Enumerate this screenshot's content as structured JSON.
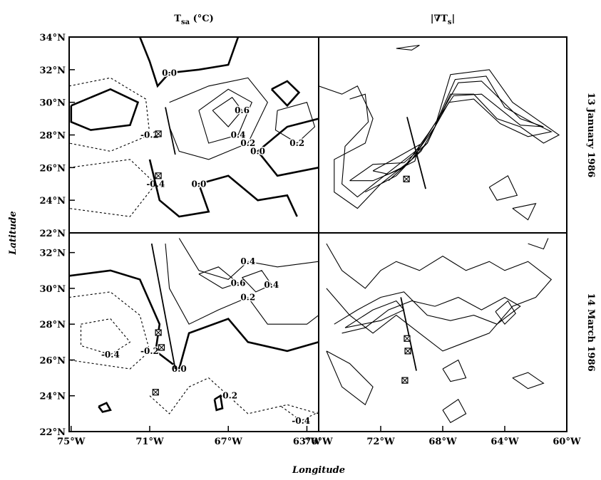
{
  "chart_data": [
    {
      "type": "contour",
      "title": {
        "main": "T",
        "sub": "sa",
        "rest": " (°C)"
      },
      "ylabel": "Latitude",
      "xlim": [
        -75.1,
        -62.4
      ],
      "ylim": [
        22,
        34
      ],
      "yticks": [
        {
          "value": 34,
          "label": "34°N"
        },
        {
          "value": 32,
          "label": "32°N"
        },
        {
          "value": 30,
          "label": "30°N"
        },
        {
          "value": 28,
          "label": "28°N"
        },
        {
          "value": 26,
          "label": "26°N"
        },
        {
          "value": 24,
          "label": "24°N"
        },
        {
          "value": 22,
          "label": "22°N"
        }
      ],
      "contours": [
        {
          "level": 0,
          "label": "0.0",
          "x": [
            -71.5,
            -71,
            -70.6,
            -70,
            -68.5,
            -67,
            -66.5
          ],
          "y": [
            34,
            32.5,
            31,
            31.8,
            32,
            32.3,
            34
          ]
        },
        {
          "level": 0,
          "x": [
            -75,
            -73,
            -71.6,
            -72,
            -74,
            -75,
            -75
          ],
          "y": [
            29.8,
            30.8,
            30,
            28.6,
            28.3,
            28.8,
            29.8
          ]
        },
        {
          "level": -0.2,
          "label": "-0.2",
          "x": [
            -75.1,
            -73,
            -71.2,
            -71,
            -73,
            -75.1
          ],
          "y": [
            31,
            31.5,
            30.2,
            28,
            27,
            27.5
          ]
        },
        {
          "level": -0.4,
          "label": "-0.4",
          "x": [
            -75.1,
            -72,
            -70.7,
            -72,
            -75.1
          ],
          "y": [
            26,
            26.5,
            25,
            23,
            23.5
          ]
        },
        {
          "level": 0.2,
          "label": "0.2",
          "x": [
            -70,
            -68,
            -66,
            -65,
            -66,
            -68,
            -69.5,
            -70
          ],
          "y": [
            30,
            31,
            31.5,
            30,
            27.5,
            26.5,
            27,
            28.5
          ]
        },
        {
          "level": 0.4,
          "label": "0.4",
          "x": [
            -68.5,
            -67,
            -65.8,
            -66.5,
            -68,
            -68.5
          ],
          "y": [
            29.5,
            30.8,
            30,
            28,
            27.5,
            29.5
          ]
        },
        {
          "level": 0.6,
          "label": "0.6",
          "x": [
            -67.8,
            -66.8,
            -66.3,
            -67,
            -67.8
          ],
          "y": [
            29.5,
            30.3,
            29.5,
            28.5,
            29.5
          ]
        },
        {
          "level": 0,
          "label": "0.0",
          "x": [
            -71,
            -70.5,
            -69.5,
            -68,
            -68.5,
            -67,
            -65.5,
            -64,
            -63.5
          ],
          "y": [
            26.5,
            24,
            23,
            23.3,
            25,
            25.5,
            24,
            24.3,
            23
          ]
        },
        {
          "level": 0,
          "label": "0.0",
          "x": [
            -62.4,
            -64.5,
            -65.5,
            -64,
            -62.4
          ],
          "y": [
            26,
            25.5,
            27,
            28.5,
            29
          ]
        },
        {
          "level": 0.2,
          "label": "0.2",
          "x": [
            -64.5,
            -63,
            -62.6,
            -63.5,
            -64.6,
            -64.5
          ],
          "y": [
            29.5,
            30,
            28.5,
            27.5,
            28.3,
            29.5
          ]
        },
        {
          "level": 0,
          "x": [
            -64.8,
            -64,
            -63.4,
            -64,
            -64.8
          ],
          "y": [
            30.8,
            31.3,
            30.6,
            29.8,
            30.8
          ]
        }
      ],
      "markers": {
        "x": [
          -70.56,
          -70.56
        ],
        "y": [
          28.07,
          25.5
        ]
      },
      "section": {
        "x": [
          -70.2,
          -69.7
        ],
        "y": [
          29.7,
          26.8
        ]
      }
    },
    {
      "type": "contour",
      "title": {
        "main": "|∇T",
        "sub": "s",
        "rest": "|"
      },
      "side_label": "13 January 1986",
      "xlim": [
        -76,
        -60
      ],
      "ylim": [
        22,
        34
      ],
      "contours": [
        {
          "level": 1,
          "x": [
            -76,
            -74.5,
            -73.5,
            -72.5,
            -73,
            -75,
            -75,
            -73.5,
            -72,
            -70,
            -68.5,
            -67.5,
            -65,
            -63.5,
            -62,
            -60.5,
            -61.5,
            -63,
            -64.5,
            -66,
            -67.5,
            -69,
            -71,
            -73
          ],
          "y": [
            31,
            30.5,
            31,
            29,
            27.5,
            26.5,
            24.5,
            23.5,
            25,
            26.5,
            28.5,
            31.7,
            32,
            30,
            29,
            28,
            27.5,
            28.5,
            29,
            30.5,
            30.5,
            27.5,
            25.5,
            24.5
          ]
        },
        {
          "level": 2,
          "x": [
            -74,
            -73,
            -72.8,
            -74.3,
            -74.5,
            -73.5,
            -71.5,
            -69.5,
            -68.3,
            -67.2,
            -65.2,
            -64,
            -62.3,
            -61,
            -62.5,
            -64.3,
            -66,
            -67.6,
            -69.4,
            -71.5
          ],
          "y": [
            30.2,
            30.5,
            28.8,
            27.3,
            25,
            24.2,
            25.7,
            27.2,
            29,
            31.4,
            31.6,
            29.7,
            28.8,
            28.2,
            27.9,
            28.7,
            30.2,
            30,
            27,
            25.2
          ]
        },
        {
          "level": 3,
          "x": [
            -74,
            -72.5,
            -70.5,
            -69,
            -68,
            -67,
            -65.5,
            -63,
            -61.5,
            -63,
            -65.5,
            -67.3,
            -69,
            -70.5,
            -72.5,
            -74
          ],
          "y": [
            25.2,
            26.2,
            26.3,
            27.5,
            29.5,
            31.2,
            31.3,
            29,
            28.5,
            28.6,
            30.5,
            30.4,
            28,
            26,
            25.2,
            25.2
          ]
        },
        {
          "level": 4,
          "x": [
            -72.5,
            -71,
            -69.5,
            -69.8,
            -71.5,
            -72.5
          ],
          "y": [
            25.8,
            26.6,
            27.4,
            26.4,
            25.6,
            25.8
          ]
        },
        {
          "level": 1,
          "x": [
            -65,
            -63.8,
            -63.2,
            -64.5,
            -65
          ],
          "y": [
            24.8,
            25.5,
            24.3,
            24,
            24.8
          ]
        },
        {
          "level": 1,
          "x": [
            -63.5,
            -62,
            -62.5,
            -63.5
          ],
          "y": [
            23.5,
            23.8,
            22.8,
            23.5
          ]
        },
        {
          "level": 1,
          "x": [
            -71,
            -69.5,
            -70,
            -71
          ],
          "y": [
            33.3,
            33.5,
            33.2,
            33.3
          ]
        }
      ],
      "markers": {
        "x": [
          -70.34
        ],
        "y": [
          25.3
        ]
      },
      "section": {
        "x": [
          -70.3,
          -69.1
        ],
        "y": [
          29.1,
          24.7
        ]
      }
    },
    {
      "type": "contour",
      "xlabel": "Longitude",
      "xlim": [
        -75.1,
        -62.4
      ],
      "ylim": [
        22,
        33.1
      ],
      "xticks": [
        {
          "value": -75,
          "label": "75°W"
        },
        {
          "value": -71,
          "label": "71°W"
        },
        {
          "value": -67,
          "label": "67°W"
        },
        {
          "value": -63,
          "label": "63°W"
        }
      ],
      "yticks": [
        {
          "value": 32,
          "label": "32°N"
        },
        {
          "value": 30,
          "label": "30°N"
        },
        {
          "value": 28,
          "label": "28°N"
        },
        {
          "value": 26,
          "label": "26°N"
        },
        {
          "value": 24,
          "label": "24°N"
        },
        {
          "value": 22,
          "label": "22°N"
        }
      ],
      "contours": [
        {
          "level": 0,
          "label": "0.0",
          "x": [
            -75.1,
            -73,
            -71.5,
            -70.5,
            -70.7,
            -69.5,
            -69,
            -67,
            -66,
            -64,
            -62.4
          ],
          "y": [
            30.7,
            31,
            30.5,
            28,
            26.5,
            25.5,
            27.5,
            28.3,
            27,
            26.5,
            27
          ]
        },
        {
          "level": 0.2,
          "label": "0.2",
          "x": [
            -70.2,
            -70,
            -69,
            -67.5,
            -66,
            -65,
            -63,
            -62.4
          ],
          "y": [
            32.5,
            30,
            28,
            28.8,
            29.5,
            28,
            28,
            28.5
          ]
        },
        {
          "level": 0.4,
          "label": "0.4",
          "x": [
            -69.5,
            -68.5,
            -67,
            -66,
            -64.5,
            -62.4
          ],
          "y": [
            32.8,
            31,
            30.5,
            31.5,
            31.2,
            31.5
          ]
        },
        {
          "level": 0.6,
          "label": "0.6",
          "x": [
            -68.5,
            -67.3,
            -66.5,
            -67.5,
            -68.5
          ],
          "y": [
            30.8,
            30,
            30.3,
            31.2,
            30.8
          ]
        },
        {
          "level": 0.4,
          "label": "0.4",
          "x": [
            -66.3,
            -65.3,
            -64.8,
            -65.6,
            -66.3
          ],
          "y": [
            30.6,
            31,
            30.2,
            29.8,
            30.6
          ]
        },
        {
          "level": -0.2,
          "label": "-0.2",
          "x": [
            -75.1,
            -73,
            -71.5,
            -71,
            -72,
            -75.1
          ],
          "y": [
            29.5,
            29.8,
            28.5,
            26.5,
            25.5,
            26
          ]
        },
        {
          "level": -0.4,
          "label": "-0.4",
          "x": [
            -74.5,
            -73,
            -72,
            -73,
            -74.5,
            -74.5
          ],
          "y": [
            28,
            28.3,
            27,
            26.3,
            26.8,
            28
          ]
        },
        {
          "level": -0.2,
          "label": "-0.2",
          "x": [
            -71,
            -70,
            -69,
            -68,
            -67,
            -66,
            -64,
            -62.4
          ],
          "y": [
            24,
            23,
            24.5,
            25,
            24,
            23,
            23.5,
            23
          ]
        },
        {
          "level": -0.4,
          "label": "-0.4",
          "x": [
            -64.3,
            -63.3,
            -62.4
          ],
          "y": [
            23.4,
            22.6,
            23.1
          ]
        },
        {
          "level": 0,
          "x": [
            -73.6,
            -73.2,
            -73,
            -73.4,
            -73.6
          ],
          "y": [
            23.4,
            23.6,
            23.2,
            23.1,
            23.4
          ]
        },
        {
          "level": 0,
          "x": [
            -67.7,
            -67.4,
            -67.3,
            -67.6,
            -67.7
          ],
          "y": [
            23.8,
            24,
            23.3,
            23.2,
            23.8
          ]
        }
      ],
      "markers": {
        "x": [
          -70.56,
          -70.4,
          -70.7
        ],
        "y": [
          27.53,
          26.7,
          24.2
        ]
      },
      "section": {
        "x": [
          -70.9,
          -69.7
        ],
        "y": [
          32.5,
          25.5
        ]
      }
    },
    {
      "type": "contour",
      "side_label": "14 March 1986",
      "xlim": [
        -76,
        -60
      ],
      "ylim": [
        22,
        33.1
      ],
      "xticks": [
        {
          "value": -76,
          "label": "76°W"
        },
        {
          "value": -72,
          "label": "72°W"
        },
        {
          "value": -68,
          "label": "68°W"
        },
        {
          "value": -64,
          "label": "64°W"
        },
        {
          "value": -60,
          "label": "60°W"
        }
      ],
      "contours": [
        {
          "level": 1,
          "x": [
            -75.5,
            -74.5,
            -73,
            -72,
            -71,
            -69.5,
            -68,
            -66.5,
            -65,
            -64,
            -62.5,
            -61,
            -62,
            -63.5,
            -65,
            -66.5,
            -68,
            -69.5,
            -71,
            -72.5,
            -74,
            -75.5
          ],
          "y": [
            32.5,
            31,
            30,
            31,
            31.5,
            31,
            31.8,
            31,
            31.5,
            31,
            31.5,
            30.5,
            29.5,
            29,
            27.5,
            27,
            26.5,
            27.5,
            28.5,
            27.5,
            28.5,
            30
          ]
        },
        {
          "level": 2,
          "x": [
            -75,
            -73.5,
            -72,
            -70.5,
            -69,
            -67.5,
            -66,
            -64.5,
            -63,
            -64,
            -65.5,
            -67,
            -68.5,
            -70,
            -71.5,
            -73,
            -74.5
          ],
          "y": [
            28,
            28.8,
            29.5,
            29.8,
            28.5,
            28.2,
            28.5,
            28,
            29,
            29.5,
            28.8,
            29.5,
            29,
            29.3,
            28.8,
            27.8,
            27.5
          ]
        },
        {
          "level": 3,
          "x": [
            -74.3,
            -72.5,
            -71,
            -70.5,
            -72,
            -74.3
          ],
          "y": [
            27.8,
            28.8,
            29.3,
            28.8,
            28.2,
            27.8
          ]
        },
        {
          "level": 3,
          "x": [
            -64.6,
            -63.8,
            -63.3,
            -64,
            -64.6
          ],
          "y": [
            28.7,
            29.3,
            28.6,
            28,
            28.7
          ]
        },
        {
          "level": 1,
          "x": [
            -75.5,
            -74,
            -72.5,
            -73,
            -74.5,
            -75.5
          ],
          "y": [
            26.5,
            25.8,
            24.5,
            23.5,
            24.5,
            26.5
          ]
        },
        {
          "level": 1,
          "x": [
            -68,
            -67,
            -66.5,
            -67.5,
            -68
          ],
          "y": [
            25.5,
            26,
            25,
            24.8,
            25.5
          ]
        },
        {
          "level": 1,
          "x": [
            -63.5,
            -62.5,
            -61.5,
            -62.5,
            -63.5
          ],
          "y": [
            25,
            25.3,
            24.7,
            24.4,
            25
          ]
        },
        {
          "level": 1,
          "x": [
            -68,
            -67.5,
            -66.5,
            -67,
            -68
          ],
          "y": [
            23.2,
            22.5,
            23,
            23.8,
            23.2
          ]
        },
        {
          "level": 1,
          "x": [
            -62.5,
            -61.5,
            -61.2
          ],
          "y": [
            32.5,
            32.2,
            32.8
          ]
        }
      ],
      "markers": {
        "x": [
          -70.3,
          -70.25,
          -70.44
        ],
        "y": [
          27.2,
          26.5,
          24.86
        ]
      },
      "section": {
        "x": [
          -70.7,
          -69.7
        ],
        "y": [
          29.5,
          25.4
        ]
      }
    }
  ]
}
